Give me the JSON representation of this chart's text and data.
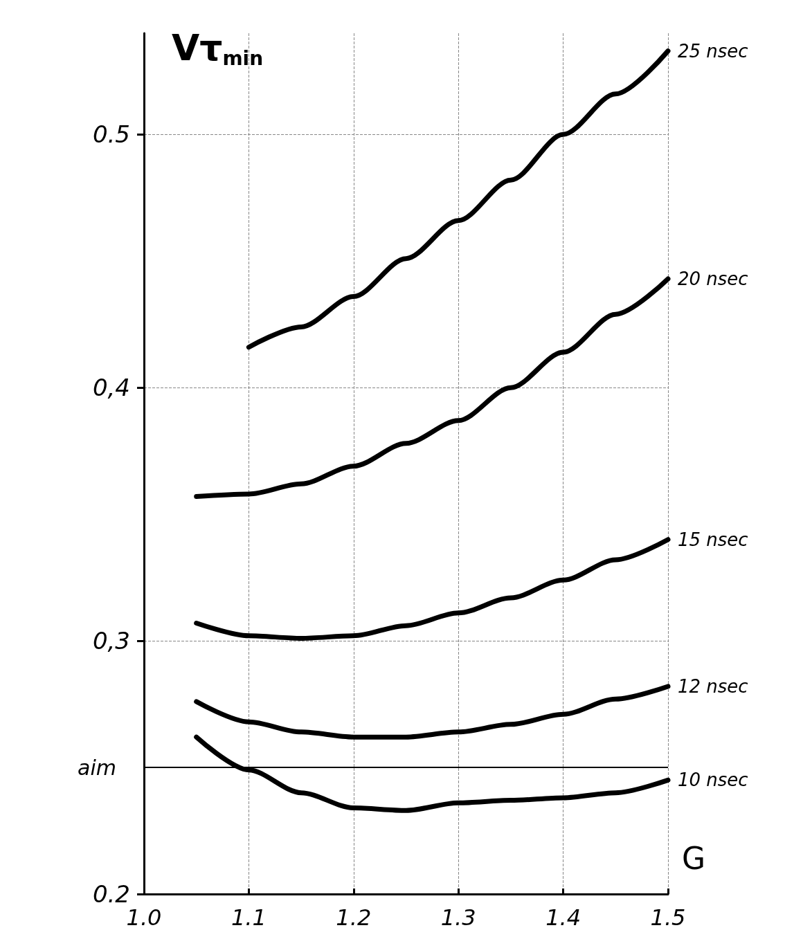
{
  "chart_data": {
    "type": "line",
    "xlabel": "G",
    "ylabel": "Vτ$_{min}$",
    "xlim": [
      1.0,
      1.5
    ],
    "xticks": [
      {
        "value": 1.0,
        "label": "1.0"
      },
      1.1,
      1.2,
      1.3,
      1.4,
      1.5
    ],
    "ylim": [
      0.2,
      0.54
    ],
    "yticks": [
      0.2,
      {
        "value": 0.3,
        "label": "0,3"
      },
      {
        "value": 0.4,
        "label": "0,4"
      },
      0.5
    ],
    "grid": true,
    "legend": false,
    "line_style": "solid",
    "marker": "none",
    "ref_lines": [
      {
        "axis": "y",
        "value": 0.25,
        "label": "aim",
        "color": "#000000"
      }
    ],
    "series": [
      {
        "name": "25 nsec",
        "color": "#000000",
        "x": [
          1.1,
          1.15,
          1.2,
          1.25,
          1.3,
          1.35,
          1.4,
          1.45,
          1.5
        ],
        "values": [
          0.416,
          0.424,
          0.436,
          0.451,
          0.466,
          0.482,
          0.5,
          0.516,
          0.533
        ]
      },
      {
        "name": "20 nsec",
        "color": "#000000",
        "x": [
          1.05,
          1.1,
          1.15,
          1.2,
          1.25,
          1.3,
          1.35,
          1.4,
          1.45,
          1.5
        ],
        "values": [
          0.357,
          0.358,
          0.362,
          0.369,
          0.378,
          0.387,
          0.4,
          0.414,
          0.429,
          0.443
        ]
      },
      {
        "name": "15 nsec",
        "color": "#000000",
        "x": [
          1.05,
          1.1,
          1.15,
          1.2,
          1.25,
          1.3,
          1.35,
          1.4,
          1.45,
          1.5
        ],
        "values": [
          0.307,
          0.302,
          0.301,
          0.302,
          0.306,
          0.311,
          0.317,
          0.324,
          0.332,
          0.34
        ]
      },
      {
        "name": "12 nsec",
        "color": "#000000",
        "x": [
          1.05,
          1.1,
          1.15,
          1.2,
          1.25,
          1.3,
          1.35,
          1.4,
          1.45,
          1.5
        ],
        "values": [
          0.276,
          0.268,
          0.264,
          0.262,
          0.262,
          0.264,
          0.267,
          0.271,
          0.277,
          0.282
        ]
      },
      {
        "name": "10 nsec",
        "color": "#000000",
        "x": [
          1.05,
          1.1,
          1.15,
          1.2,
          1.25,
          1.3,
          1.35,
          1.4,
          1.45,
          1.5
        ],
        "values": [
          0.262,
          0.249,
          0.24,
          0.234,
          0.233,
          0.236,
          0.237,
          0.238,
          0.24,
          0.245
        ]
      }
    ]
  }
}
